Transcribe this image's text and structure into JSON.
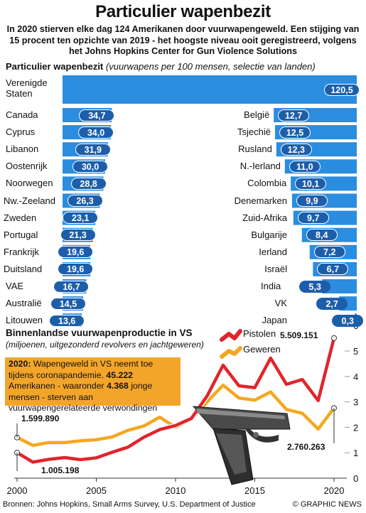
{
  "header": {
    "title": "Particulier wapenbezit",
    "subtitle": "In 2020 stierven elke dag 124 Amerikanen door vuurwapengeweld. Een stijging van 15 procent ten opzichte van 2019 - het hoogste niveau ooit geregistreerd, volgens het Johns Hopkins Center for Gun Violence Solutions"
  },
  "ownership_panel": {
    "title_bold": "Particulier wapenbezit",
    "title_italic": "(vuurwapens per 100 mensen, selectie van landen)"
  },
  "production_panel": {
    "title": "Binnenlandse vuurwapenproductie in VS",
    "subtitle": "(miljoenen, uitgezonderd revolvers en jachtgeweren)",
    "legend_pistols": "Pistolen",
    "legend_rifles": "Geweren",
    "note_bold_1": "2020:",
    "note_text_1": " Wapengeweld in VS neemt toe tijdens coronapandemie. ",
    "note_bold_2": "45.222",
    "note_text_2": " Amerikanen - waaronder ",
    "note_bold_3": "4.368",
    "note_text_3": " jonge mensen - sterven aan vuurwapengerelateerde verwondingen",
    "annotations": {
      "pistols_2000": "1.005.198",
      "rifles_2000": "1.599.890",
      "pistols_2020": "5.509.151",
      "rifles_2020": "2.760.263"
    }
  },
  "footer": {
    "sources": "Bronnen: Johns Hopkins, Small Arms Survey, U.S. Department of Justice",
    "credit": "© GRAPHIC NEWS"
  },
  "watermark": "GRAPHIC NEWS",
  "colors": {
    "bar_blue": "#2a8de0",
    "pill_blue": "#1d5eab",
    "pistols_red": "#e2242b",
    "rifles_orange": "#f4a71f",
    "note_orange": "#f3a52a"
  },
  "chart_data": [
    {
      "type": "bar",
      "orientation": "horizontal",
      "title": "Particulier wapenbezit",
      "subtitle": "(vuurwapens per 100 mensen, selectie van landen)",
      "left_column": {
        "categories": [
          "Verenigde Staten",
          "Canada",
          "Cyprus",
          "Libanon",
          "Oostenrijk",
          "Noorwegen",
          "Nw.-Zeeland",
          "Zweden",
          "Portugal",
          "Frankrijk",
          "Duitsland",
          "VAE",
          "Australië",
          "Litouwen"
        ],
        "values": [
          120.5,
          34.7,
          34.0,
          31.9,
          30.0,
          28.8,
          26.3,
          23.1,
          21.3,
          19.6,
          19.6,
          16.7,
          14.5,
          13.6
        ],
        "value_labels": [
          "120,5",
          "34,7",
          "34,0",
          "31,9",
          "30,0",
          "28,8",
          "26,3",
          "23,1",
          "21,3",
          "19,6",
          "19,6",
          "16,7",
          "14,5",
          "13,6"
        ]
      },
      "right_column": {
        "categories": [
          "België",
          "Tsjechië",
          "Rusland",
          "N.-Ierland",
          "Colombia",
          "Denemarken",
          "Zuid-Afrika",
          "Bulgarije",
          "Ierland",
          "Israël",
          "India",
          "VK",
          "Japan"
        ],
        "values": [
          12.7,
          12.5,
          12.3,
          11.0,
          10.1,
          9.9,
          9.7,
          8.4,
          7.2,
          6.7,
          5.3,
          2.7,
          0.3
        ],
        "value_labels": [
          "12,7",
          "12,5",
          "12,3",
          "11,0",
          "10,1",
          "9,9",
          "9,7",
          "8,4",
          "7,2",
          "6,7",
          "5,3",
          "2,7",
          "0,3"
        ]
      }
    },
    {
      "type": "line",
      "title": "Binnenlandse vuurwapenproductie in VS",
      "subtitle": "(miljoenen, uitgezonderd revolvers en jachtgeweren)",
      "x": [
        2000,
        2001,
        2002,
        2003,
        2004,
        2005,
        2006,
        2007,
        2008,
        2009,
        2010,
        2011,
        2012,
        2013,
        2014,
        2015,
        2016,
        2017,
        2018,
        2019,
        2020
      ],
      "x_ticks": [
        2000,
        2005,
        2010,
        2015,
        2020
      ],
      "y_ticks": [
        0,
        1,
        2,
        3,
        4,
        5,
        6
      ],
      "ylim": [
        0,
        6
      ],
      "series": [
        {
          "name": "Pistolen",
          "values": [
            1.005,
            0.63,
            0.74,
            0.81,
            0.73,
            0.8,
            1.02,
            1.22,
            1.61,
            1.91,
            2.07,
            2.35,
            3.24,
            4.44,
            3.63,
            3.56,
            4.72,
            3.69,
            3.88,
            3.05,
            5.51
          ]
        },
        {
          "name": "Geweren",
          "values": [
            1.6,
            1.29,
            1.4,
            1.4,
            1.47,
            1.51,
            1.62,
            1.88,
            2.05,
            2.4,
            2.0,
            2.32,
            3.0,
            3.66,
            3.15,
            3.07,
            3.39,
            2.7,
            2.55,
            1.93,
            2.76
          ]
        }
      ]
    }
  ]
}
